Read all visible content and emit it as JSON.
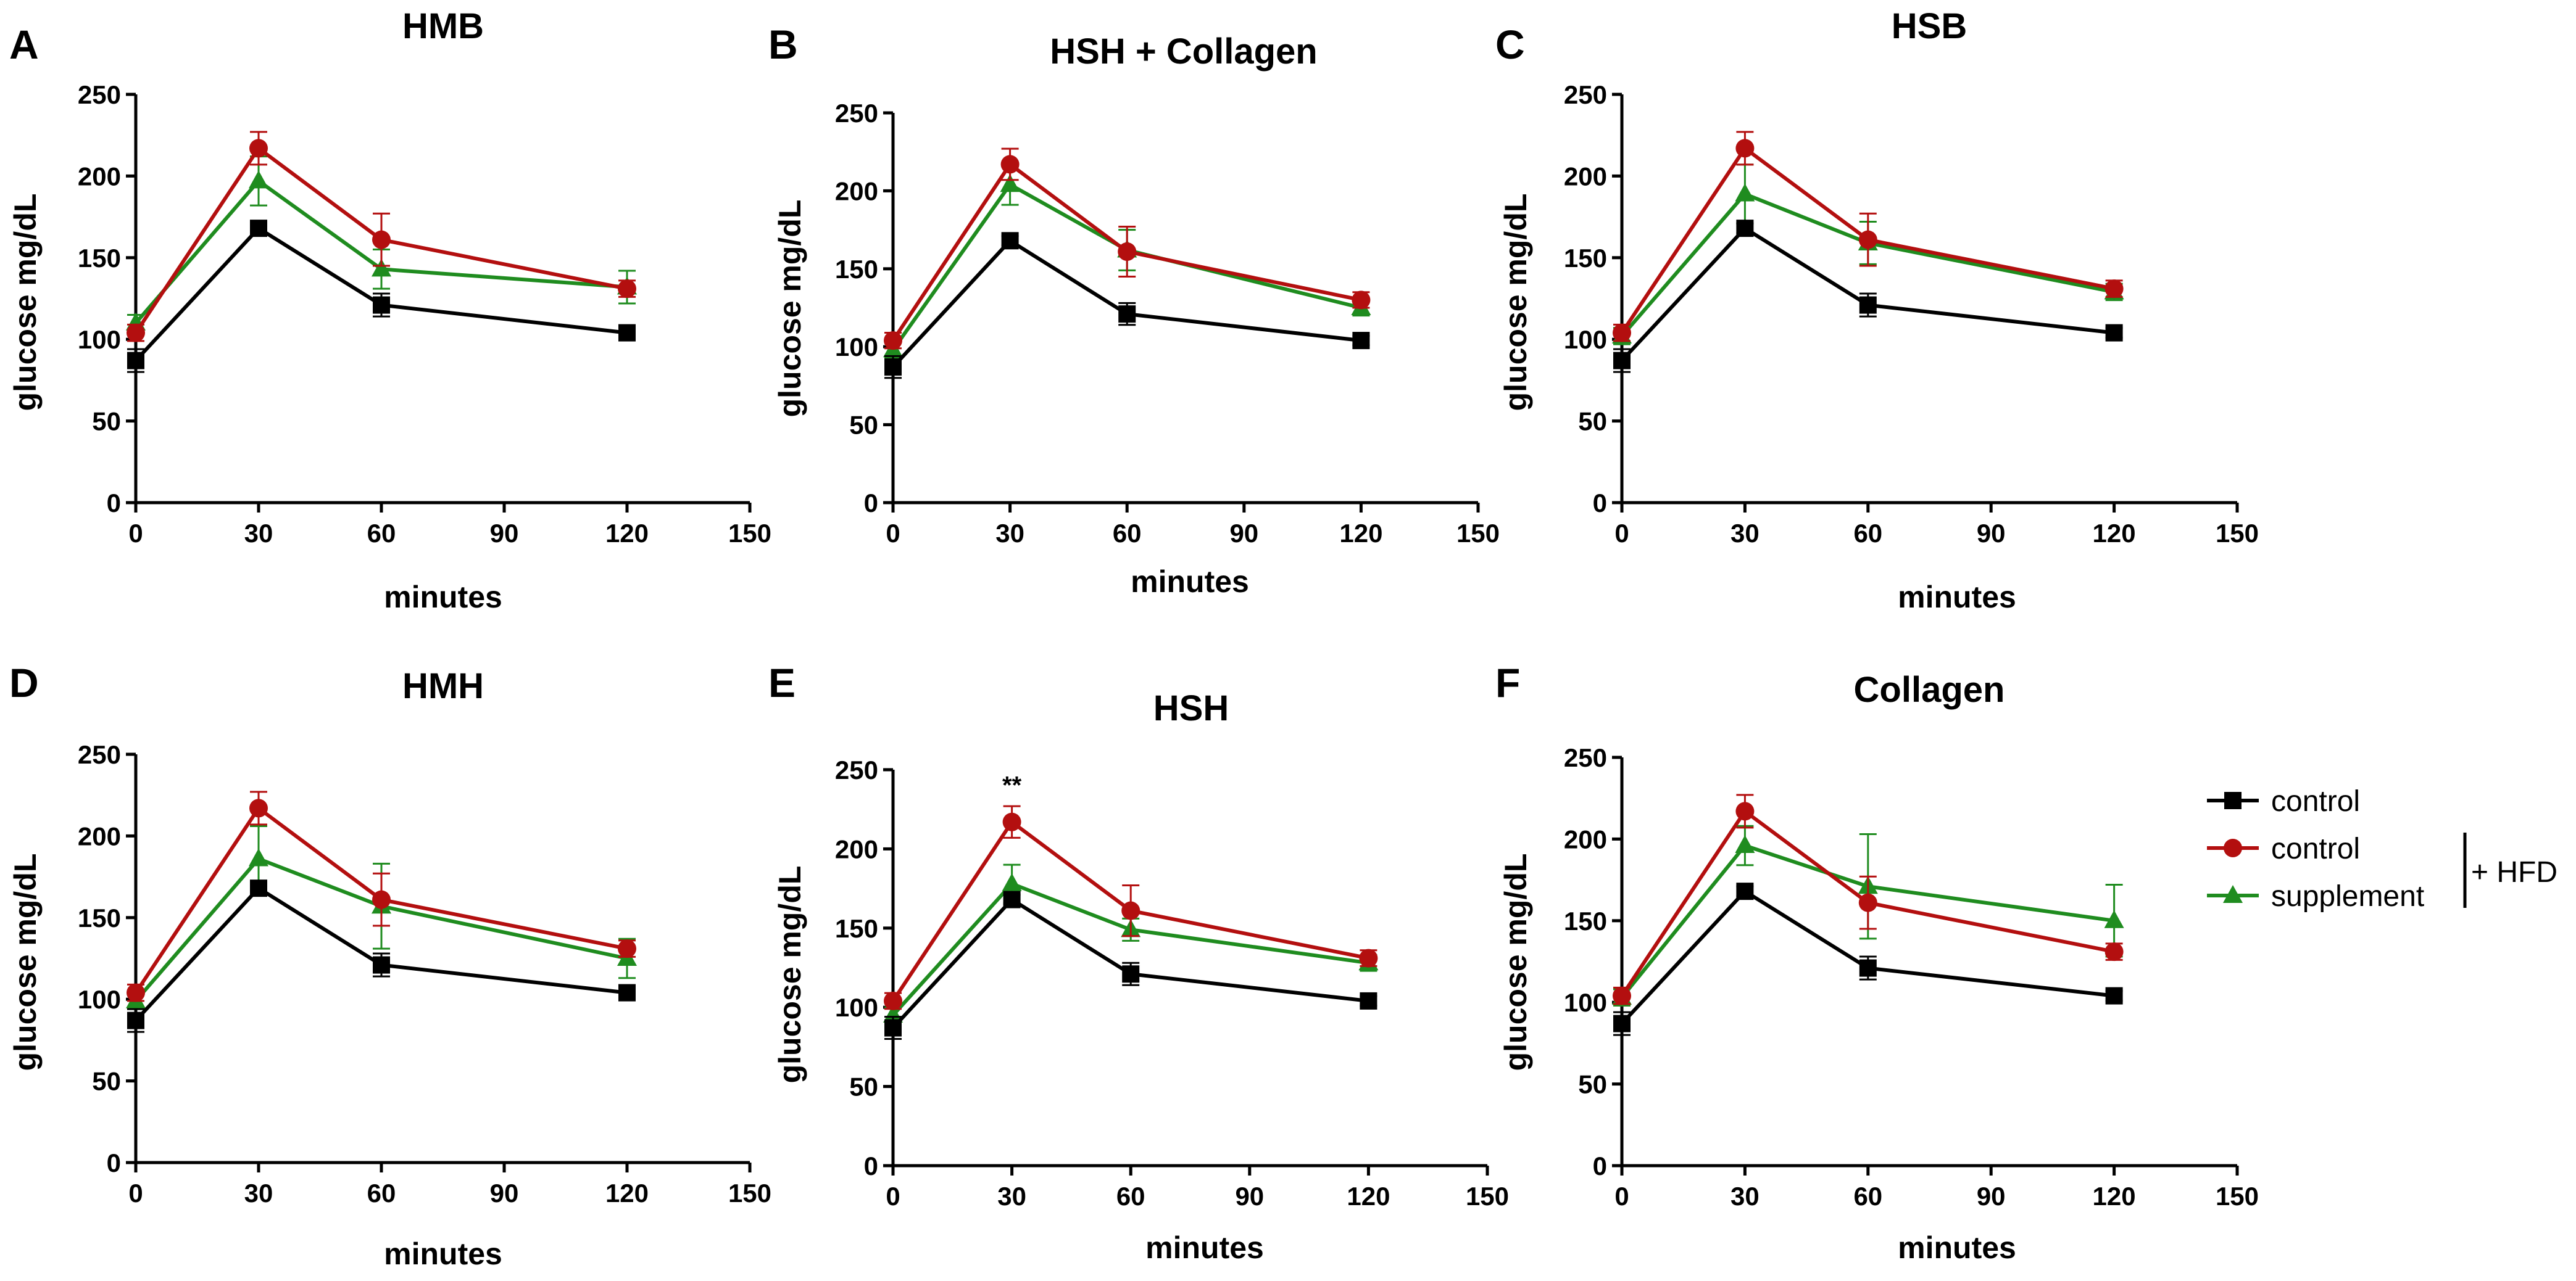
{
  "legend": {
    "items": [
      {
        "label": "control",
        "color": "#000000",
        "marker": "square"
      },
      {
        "label": "control",
        "color": "#b30f0f",
        "marker": "circle"
      },
      {
        "label": "supplement",
        "color": "#1f8c1f",
        "marker": "triangle"
      }
    ],
    "bracket_label": "+ HFD"
  },
  "chart_data": [
    {
      "type": "line",
      "panel": "A",
      "title": "HMB",
      "xlabel": "minutes",
      "ylabel": "glucose mg/dL",
      "xlim": [
        0,
        150
      ],
      "ylim": [
        0,
        250
      ],
      "xticks": [
        0,
        30,
        60,
        90,
        120,
        150
      ],
      "yticks": [
        0,
        50,
        100,
        150,
        200,
        250
      ],
      "x": [
        0,
        30,
        60,
        120
      ],
      "series": [
        {
          "name": "control",
          "values": [
            87,
            168,
            121,
            104
          ],
          "errors": [
            7,
            3,
            7,
            3
          ]
        },
        {
          "name": "control + HFD",
          "values": [
            104,
            217,
            161,
            131
          ],
          "errors": [
            5,
            10,
            16,
            5
          ]
        },
        {
          "name": "supplement + HFD",
          "values": [
            110,
            197,
            143,
            132
          ],
          "errors": [
            5,
            15,
            12,
            10
          ]
        }
      ],
      "annotations": []
    },
    {
      "type": "line",
      "panel": "B",
      "title": "HSH + Collagen",
      "xlabel": "minutes",
      "ylabel": "glucose mg/dL",
      "xlim": [
        0,
        150
      ],
      "ylim": [
        0,
        250
      ],
      "xticks": [
        0,
        30,
        60,
        90,
        120,
        150
      ],
      "yticks": [
        0,
        50,
        100,
        150,
        200,
        250
      ],
      "x": [
        0,
        30,
        60,
        120
      ],
      "series": [
        {
          "name": "control",
          "values": [
            87,
            168,
            121,
            104
          ],
          "errors": [
            7,
            3,
            7,
            3
          ]
        },
        {
          "name": "control + HFD",
          "values": [
            104,
            217,
            161,
            130
          ],
          "errors": [
            5,
            10,
            16,
            5
          ]
        },
        {
          "name": "supplement + HFD",
          "values": [
            98,
            204,
            162,
            125
          ],
          "errors": [
            5,
            13,
            13,
            5
          ]
        }
      ],
      "annotations": []
    },
    {
      "type": "line",
      "panel": "C",
      "title": "HSB",
      "xlabel": "minutes",
      "ylabel": "glucose mg/dL",
      "xlim": [
        0,
        150
      ],
      "ylim": [
        0,
        250
      ],
      "xticks": [
        0,
        30,
        60,
        90,
        120,
        150
      ],
      "yticks": [
        0,
        50,
        100,
        150,
        200,
        250
      ],
      "x": [
        0,
        30,
        60,
        120
      ],
      "series": [
        {
          "name": "control",
          "values": [
            87,
            168,
            121,
            104
          ],
          "errors": [
            7,
            3,
            7,
            3
          ]
        },
        {
          "name": "control + HFD",
          "values": [
            104,
            217,
            161,
            131
          ],
          "errors": [
            5,
            10,
            16,
            5
          ]
        },
        {
          "name": "supplement + HFD",
          "values": [
            102,
            189,
            159,
            129
          ],
          "errors": [
            5,
            18,
            13,
            5
          ]
        }
      ],
      "annotations": []
    },
    {
      "type": "line",
      "panel": "D",
      "title": "HMH",
      "xlabel": "minutes",
      "ylabel": "glucose mg/dL",
      "xlim": [
        0,
        150
      ],
      "ylim": [
        0,
        250
      ],
      "xticks": [
        0,
        30,
        60,
        90,
        120,
        150
      ],
      "yticks": [
        0,
        50,
        100,
        150,
        200,
        250
      ],
      "x": [
        0,
        30,
        60,
        120
      ],
      "series": [
        {
          "name": "control",
          "values": [
            87,
            168,
            121,
            104
          ],
          "errors": [
            7,
            3,
            7,
            3
          ]
        },
        {
          "name": "control + HFD",
          "values": [
            104,
            217,
            161,
            131
          ],
          "errors": [
            5,
            10,
            16,
            5
          ]
        },
        {
          "name": "supplement + HFD",
          "values": [
            99,
            186,
            157,
            125
          ],
          "errors": [
            5,
            20,
            26,
            12
          ]
        }
      ],
      "annotations": []
    },
    {
      "type": "line",
      "panel": "E",
      "title": "HSH",
      "xlabel": "minutes",
      "ylabel": "glucose mg/dL",
      "xlim": [
        0,
        150
      ],
      "ylim": [
        0,
        250
      ],
      "xticks": [
        0,
        30,
        60,
        90,
        120,
        150
      ],
      "yticks": [
        0,
        50,
        100,
        150,
        200,
        250
      ],
      "x": [
        0,
        30,
        60,
        120
      ],
      "series": [
        {
          "name": "control",
          "values": [
            87,
            168,
            121,
            104
          ],
          "errors": [
            7,
            3,
            7,
            3
          ]
        },
        {
          "name": "control + HFD",
          "values": [
            104,
            217,
            161,
            131
          ],
          "errors": [
            5,
            10,
            16,
            5
          ]
        },
        {
          "name": "supplement + HFD",
          "values": [
            95,
            178,
            149,
            128
          ],
          "errors": [
            5,
            12,
            7,
            5
          ]
        }
      ],
      "annotations": [
        {
          "text": "**",
          "x": 30,
          "y": 235
        }
      ]
    },
    {
      "type": "line",
      "panel": "F",
      "title": "Collagen",
      "xlabel": "minutes",
      "ylabel": "glucose mg/dL",
      "xlim": [
        0,
        150
      ],
      "ylim": [
        0,
        250
      ],
      "xticks": [
        0,
        30,
        60,
        90,
        120,
        150
      ],
      "yticks": [
        0,
        50,
        100,
        150,
        200,
        250
      ],
      "x": [
        0,
        30,
        60,
        120
      ],
      "series": [
        {
          "name": "control",
          "values": [
            87,
            168,
            121,
            104
          ],
          "errors": [
            7,
            3,
            7,
            3
          ]
        },
        {
          "name": "control + HFD",
          "values": [
            104,
            217,
            161,
            131
          ],
          "errors": [
            5,
            10,
            16,
            5
          ]
        },
        {
          "name": "supplement + HFD",
          "values": [
            103,
            196,
            171,
            150
          ],
          "errors": [
            5,
            12,
            32,
            22
          ]
        }
      ],
      "annotations": []
    }
  ]
}
